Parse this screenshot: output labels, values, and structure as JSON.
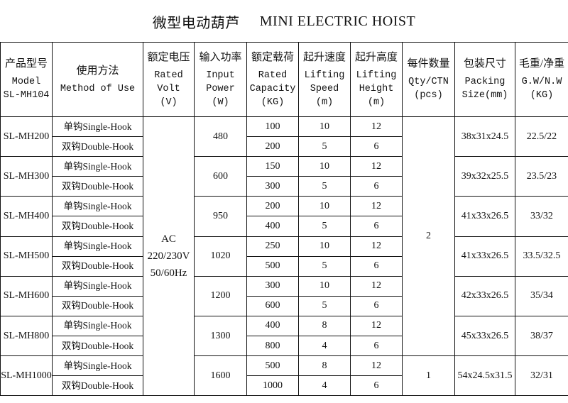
{
  "title": {
    "cn": "微型电动葫芦",
    "en": "MINI ELECTRIC HOIST"
  },
  "headers": [
    {
      "cn": "产品型号",
      "en": [
        "Model",
        "SL-MH104"
      ]
    },
    {
      "cn": "使用方法",
      "en": [
        "Method of Use"
      ]
    },
    {
      "cn": "额定电压",
      "en": [
        "Rated",
        "Volt",
        "(V)"
      ]
    },
    {
      "cn": "输入功率",
      "en": [
        "Input",
        "Power",
        "(W)"
      ]
    },
    {
      "cn": "额定载荷",
      "en": [
        "Rated",
        "Capacity",
        "(KG)"
      ]
    },
    {
      "cn": "起升速度",
      "en": [
        "Lifting",
        "Speed",
        "(m)"
      ]
    },
    {
      "cn": "起升高度",
      "en": [
        "Lifting",
        "Height",
        "(m)"
      ]
    },
    {
      "cn": "每件数量",
      "en": [
        "Qty/CTN",
        "(pcs)"
      ]
    },
    {
      "cn": "包装尺寸",
      "en": [
        "Packing",
        "Size(mm)"
      ]
    },
    {
      "cn": "毛重/净重",
      "en": [
        "G.W/N.W",
        "(KG)"
      ]
    }
  ],
  "methods": {
    "single": "单钩Single-Hook",
    "double": "双钩Double-Hook"
  },
  "voltage": [
    "AC",
    "220/230V",
    "50/60Hz"
  ],
  "qty_groups": [
    {
      "value": "2",
      "models": 6
    },
    {
      "value": "1",
      "models": 1
    }
  ],
  "models": [
    {
      "model": "SL-MH200",
      "power": "480",
      "capacity": [
        "100",
        "200"
      ],
      "speed": [
        "10",
        "5"
      ],
      "height": [
        "12",
        "6"
      ],
      "packing": "38x31x24.5",
      "weight": "22.5/22"
    },
    {
      "model": "SL-MH300",
      "power": "600",
      "capacity": [
        "150",
        "300"
      ],
      "speed": [
        "10",
        "5"
      ],
      "height": [
        "12",
        "6"
      ],
      "packing": "39x32x25.5",
      "weight": "23.5/23"
    },
    {
      "model": "SL-MH400",
      "power": "950",
      "capacity": [
        "200",
        "400"
      ],
      "speed": [
        "10",
        "5"
      ],
      "height": [
        "12",
        "6"
      ],
      "packing": "41x33x26.5",
      "weight": "33/32"
    },
    {
      "model": "SL-MH500",
      "power": "1020",
      "capacity": [
        "250",
        "500"
      ],
      "speed": [
        "10",
        "5"
      ],
      "height": [
        "12",
        "6"
      ],
      "packing": "41x33x26.5",
      "weight": "33.5/32.5"
    },
    {
      "model": "SL-MH600",
      "power": "1200",
      "capacity": [
        "300",
        "600"
      ],
      "speed": [
        "10",
        "5"
      ],
      "height": [
        "12",
        "6"
      ],
      "packing": "42x33x26.5",
      "weight": "35/34"
    },
    {
      "model": "SL-MH800",
      "power": "1300",
      "capacity": [
        "400",
        "800"
      ],
      "speed": [
        "8",
        "4"
      ],
      "height": [
        "12",
        "6"
      ],
      "packing": "45x33x26.5",
      "weight": "38/37"
    },
    {
      "model": "SL-MH1000",
      "power": "1600",
      "capacity": [
        "500",
        "1000"
      ],
      "speed": [
        "8",
        "4"
      ],
      "height": [
        "12",
        "6"
      ],
      "packing": "54x24.5x31.5",
      "weight": "32/31"
    }
  ]
}
